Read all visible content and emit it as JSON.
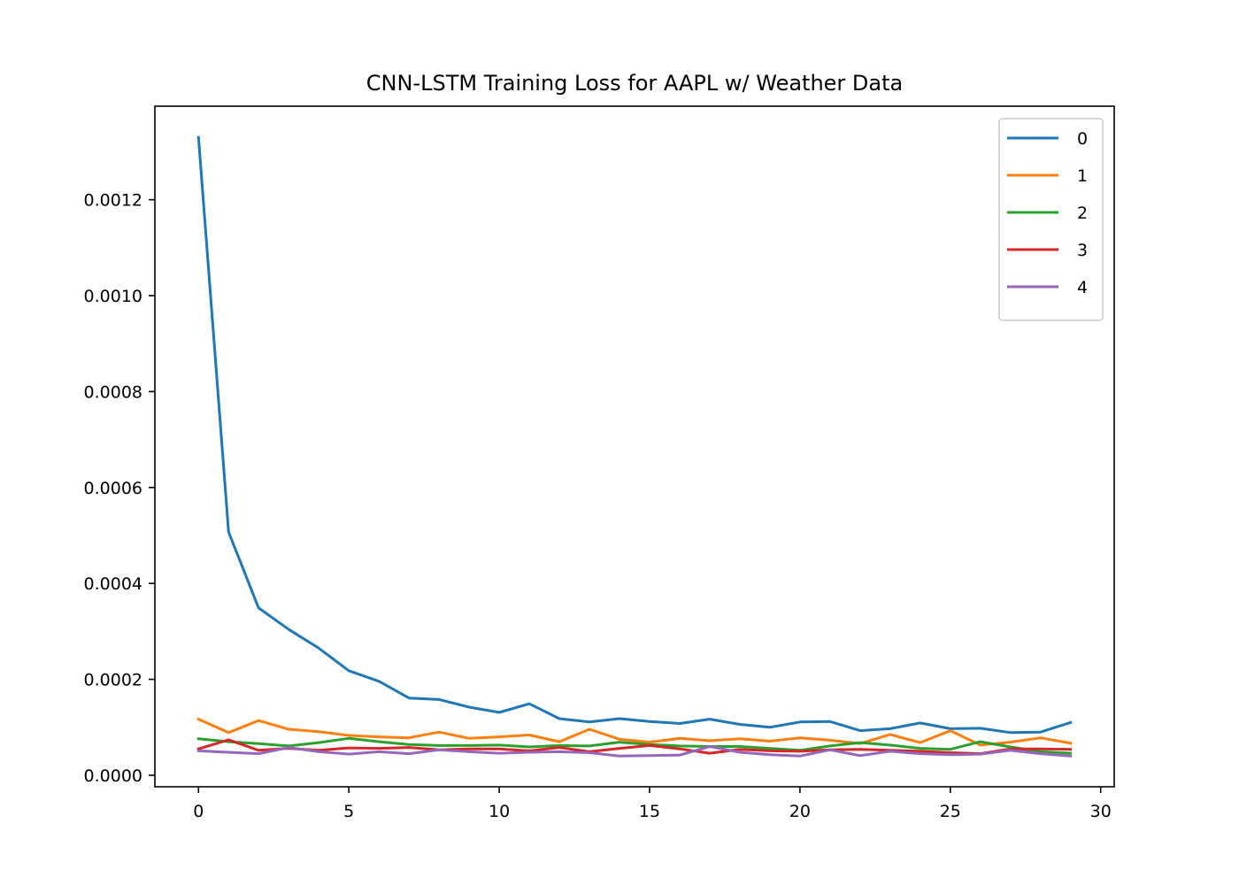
{
  "chart_data": {
    "type": "line",
    "title": "CNN-LSTM Training Loss for AAPL w/ Weather Data",
    "xlabel": "",
    "ylabel": "",
    "xlim": [
      -1.45,
      30.45
    ],
    "ylim": [
      -2.4e-05,
      0.001395
    ],
    "x_ticks": [
      0,
      5,
      10,
      15,
      20,
      25,
      30
    ],
    "y_ticks": [
      0.0,
      0.0002,
      0.0004,
      0.0006,
      0.0008,
      0.001,
      0.0012
    ],
    "x_tick_labels": [
      "0",
      "5",
      "10",
      "15",
      "20",
      "25",
      "30"
    ],
    "y_tick_labels": [
      "0.0000",
      "0.0002",
      "0.0004",
      "0.0006",
      "0.0008",
      "0.0010",
      "0.0012"
    ],
    "grid": false,
    "legend_position": "top-right",
    "x": [
      0,
      1,
      2,
      3,
      4,
      5,
      6,
      7,
      8,
      9,
      10,
      11,
      12,
      13,
      14,
      15,
      16,
      17,
      18,
      19,
      20,
      21,
      22,
      23,
      24,
      25,
      26,
      27,
      28,
      29
    ],
    "series": [
      {
        "name": "0",
        "color": "#1f77b4",
        "values": [
          0.00133,
          0.000507,
          0.000349,
          0.000304,
          0.000265,
          0.000218,
          0.000196,
          0.000161,
          0.000158,
          0.000142,
          0.000131,
          0.000149,
          0.000118,
          0.000111,
          0.000118,
          0.000112,
          0.000108,
          0.000117,
          0.000106,
          0.0001,
          0.000111,
          0.000112,
          9.3e-05,
          9.7e-05,
          0.000109,
          9.7e-05,
          9.8e-05,
          8.9e-05,
          9e-05,
          0.00011
        ]
      },
      {
        "name": "1",
        "color": "#ff7f0e",
        "values": [
          0.000117,
          8.9e-05,
          0.000114,
          9.6e-05,
          9.1e-05,
          8.3e-05,
          8e-05,
          7.8e-05,
          9e-05,
          7.7e-05,
          8e-05,
          8.4e-05,
          7e-05,
          9.6e-05,
          7.5e-05,
          6.9e-05,
          7.7e-05,
          7.2e-05,
          7.6e-05,
          7.1e-05,
          7.8e-05,
          7.3e-05,
          6.6e-05,
          8.5e-05,
          6.8e-05,
          9.3e-05,
          6.3e-05,
          6.9e-05,
          7.8e-05,
          6.7e-05
        ]
      },
      {
        "name": "2",
        "color": "#2ca02c",
        "values": [
          7.6e-05,
          7e-05,
          6.6e-05,
          6.1e-05,
          6.8e-05,
          7.7e-05,
          7e-05,
          6.4e-05,
          6.2e-05,
          6.2e-05,
          6.3e-05,
          5.9e-05,
          6.2e-05,
          6.1e-05,
          6.9e-05,
          6.4e-05,
          6.1e-05,
          6e-05,
          6e-05,
          5.6e-05,
          5.2e-05,
          6.1e-05,
          6.8e-05,
          6.3e-05,
          5.6e-05,
          5.4e-05,
          7e-05,
          5.9e-05,
          4.9e-05,
          4.6e-05
        ]
      },
      {
        "name": "3",
        "color": "#d62728",
        "values": [
          5.5e-05,
          7.4e-05,
          5.2e-05,
          5.6e-05,
          5.2e-05,
          5.7e-05,
          5.6e-05,
          5.8e-05,
          5.3e-05,
          5.5e-05,
          5.5e-05,
          5.1e-05,
          5.8e-05,
          4.9e-05,
          5.6e-05,
          6.2e-05,
          5.5e-05,
          4.6e-05,
          5.4e-05,
          5.1e-05,
          5e-05,
          5.3e-05,
          5.4e-05,
          5.2e-05,
          5e-05,
          4.7e-05,
          4.5e-05,
          5.5e-05,
          5.5e-05,
          5.4e-05
        ]
      },
      {
        "name": "4",
        "color": "#9467bd",
        "values": [
          5.1e-05,
          4.8e-05,
          4.5e-05,
          5.8e-05,
          4.9e-05,
          4.4e-05,
          4.9e-05,
          4.5e-05,
          5.3e-05,
          4.9e-05,
          4.6e-05,
          4.8e-05,
          4.9e-05,
          4.7e-05,
          4e-05,
          4.1e-05,
          4.2e-05,
          6e-05,
          4.8e-05,
          4.3e-05,
          4e-05,
          5.3e-05,
          4.1e-05,
          5e-05,
          4.5e-05,
          4.3e-05,
          4.4e-05,
          5.2e-05,
          4.5e-05,
          4e-05
        ]
      }
    ]
  }
}
